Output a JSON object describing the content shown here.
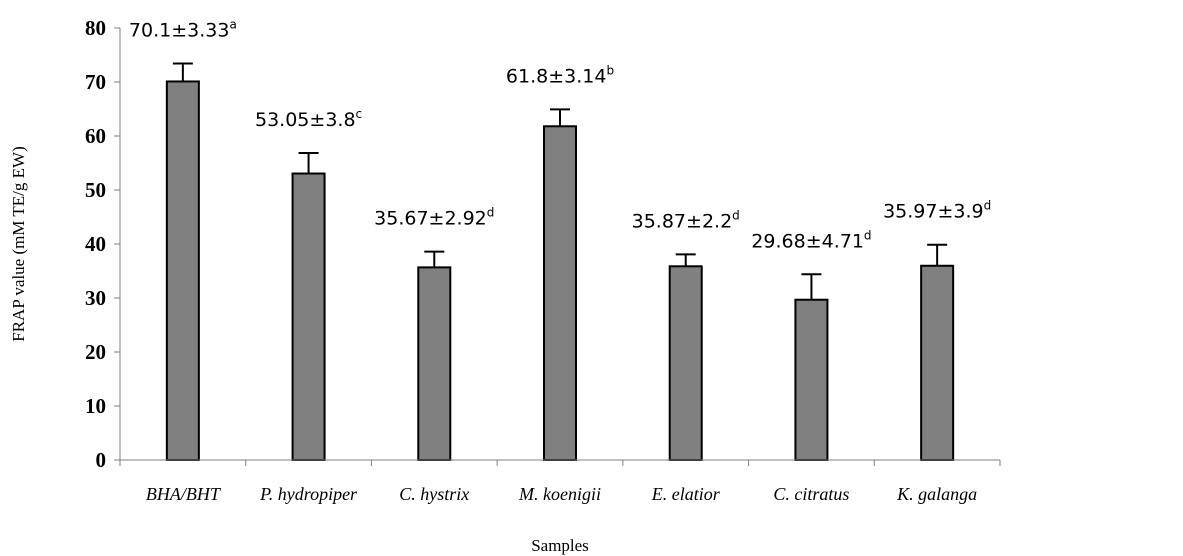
{
  "chart_data": {
    "type": "bar",
    "title": "",
    "xlabel": "Samples",
    "ylabel": "FRAP value (mM TE/g EW)",
    "ylim": [
      0,
      80
    ],
    "yticks": [
      0,
      10,
      20,
      30,
      40,
      50,
      60,
      70,
      80
    ],
    "grid": false,
    "bar_color": "#808080",
    "categories": [
      "BHA/BHT",
      "P. hydropiper",
      "C. hystrix",
      "M. koenigii",
      "E. elatior",
      "C. citratus",
      "K. galanga"
    ],
    "values": [
      70.1,
      53.05,
      35.67,
      61.8,
      35.87,
      29.68,
      35.97
    ],
    "errors": [
      3.33,
      3.8,
      2.92,
      3.14,
      2.2,
      4.71,
      3.9
    ],
    "data_labels": [
      "70.1±3.33",
      "53.05±3.8",
      "35.67±2.92",
      "61.8±3.14",
      "35.87±2.2",
      "29.68±4.71",
      "35.97±3.9"
    ],
    "significance_letters": [
      "a",
      "c",
      "d",
      "b",
      "d",
      "d",
      "d"
    ]
  }
}
